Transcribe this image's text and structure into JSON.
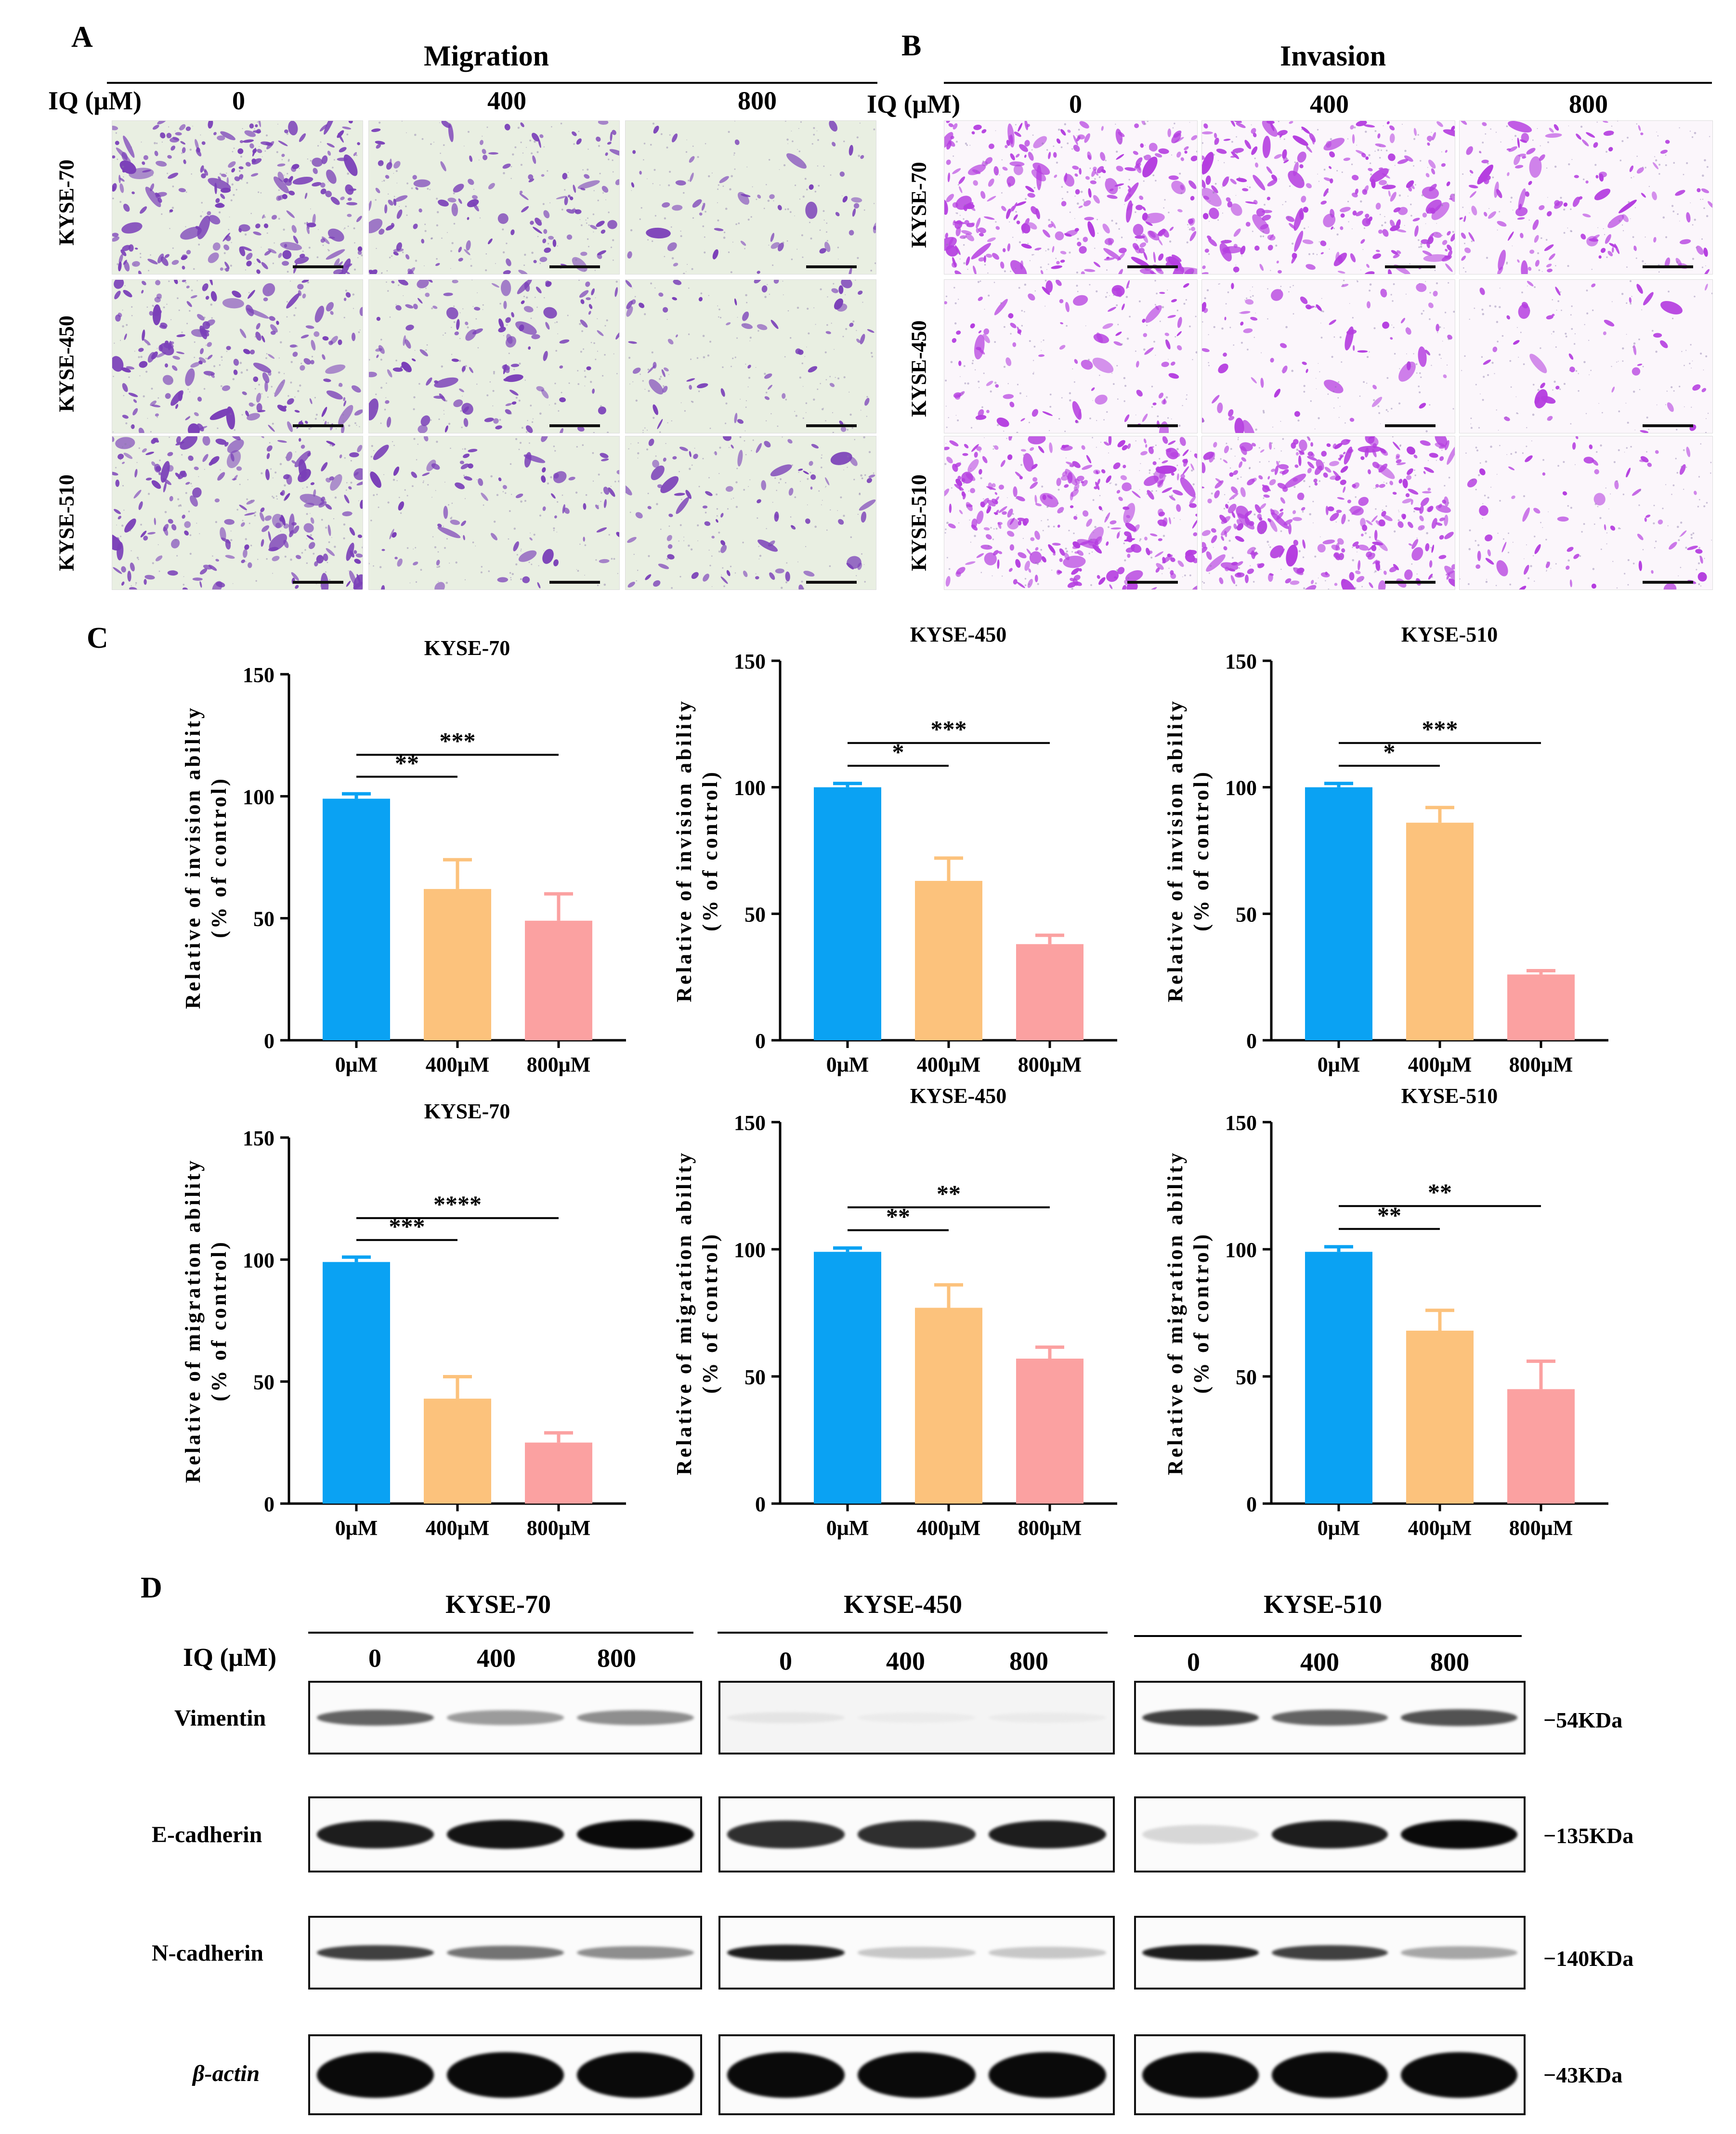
{
  "panelA": {
    "letter": "A",
    "title": "Migration",
    "iq_label": "IQ (μM)",
    "doses": [
      "0",
      "400",
      "800"
    ],
    "cell_lines": [
      "KYSE-70",
      "KYSE-450",
      "KYSE-510"
    ]
  },
  "panelB": {
    "letter": "B",
    "title": "Invasion",
    "iq_label": "IQ (μM)",
    "doses": [
      "0",
      "400",
      "800"
    ],
    "cell_lines": [
      "KYSE-70",
      "KYSE-450",
      "KYSE-510"
    ]
  },
  "panelC": {
    "letter": "C"
  },
  "chart_data": [
    {
      "type": "bar",
      "title": "KYSE-70",
      "ylabel": "Relative of invision ability\n(% of control)",
      "ylabel_line1": "Relative of invision ability",
      "ylabel_line2": "(% of control)",
      "categories": [
        "0μM",
        "400μM",
        "800μM"
      ],
      "values": [
        99,
        62,
        49
      ],
      "errors": [
        2,
        12,
        11
      ],
      "ylim": [
        0,
        150
      ],
      "yticks": [
        "0",
        "50",
        "100",
        "150"
      ],
      "sig": [
        {
          "from": 0,
          "to": 1,
          "label": "**"
        },
        {
          "from": 0,
          "to": 2,
          "label": "***"
        }
      ]
    },
    {
      "type": "bar",
      "title": "KYSE-450",
      "ylabel": "Relative of invision  ability\n(% of control)",
      "ylabel_line1": "Relative of invision  ability",
      "ylabel_line2": "(% of control)",
      "categories": [
        "0μM",
        "400μM",
        "800μM"
      ],
      "values": [
        100,
        63,
        38
      ],
      "errors": [
        1.5,
        9,
        3.5
      ],
      "ylim": [
        0,
        150
      ],
      "yticks": [
        "0",
        "50",
        "100",
        "150"
      ],
      "sig": [
        {
          "from": 0,
          "to": 1,
          "label": "*"
        },
        {
          "from": 0,
          "to": 2,
          "label": "***"
        }
      ]
    },
    {
      "type": "bar",
      "title": "KYSE-510",
      "ylabel": "Relative of invision ability\n(% of control)",
      "ylabel_line1": "Relative of invision ability",
      "ylabel_line2": "(% of control)",
      "categories": [
        "0μM",
        "400μM",
        "800μM"
      ],
      "values": [
        100,
        86,
        26
      ],
      "errors": [
        1.5,
        6,
        1.5
      ],
      "ylim": [
        0,
        150
      ],
      "yticks": [
        "0",
        "50",
        "100",
        "150"
      ],
      "sig": [
        {
          "from": 0,
          "to": 1,
          "label": "*"
        },
        {
          "from": 0,
          "to": 2,
          "label": "***"
        }
      ]
    },
    {
      "type": "bar",
      "title": "KYSE-70",
      "ylabel": "Relative of migration ability\n(% of control)",
      "ylabel_line1": "Relative of migration ability",
      "ylabel_line2": "(% of control)",
      "categories": [
        "0μM",
        "400μM",
        "800μM"
      ],
      "values": [
        99,
        43,
        25
      ],
      "errors": [
        2,
        9,
        4
      ],
      "ylim": [
        0,
        150
      ],
      "yticks": [
        "0",
        "50",
        "100",
        "150"
      ],
      "sig": [
        {
          "from": 0,
          "to": 1,
          "label": "***"
        },
        {
          "from": 0,
          "to": 2,
          "label": "****"
        }
      ]
    },
    {
      "type": "bar",
      "title": "KYSE-450",
      "ylabel": "Relative of migration ability\n(% of control)",
      "ylabel_line1": "Relative of migration ability",
      "ylabel_line2": "(% of control)",
      "categories": [
        "0μM",
        "400μM",
        "800μM"
      ],
      "values": [
        99,
        77,
        57
      ],
      "errors": [
        1.5,
        9,
        4.5
      ],
      "ylim": [
        0,
        150
      ],
      "yticks": [
        "0",
        "50",
        "100",
        "150"
      ],
      "sig": [
        {
          "from": 0,
          "to": 1,
          "label": "**"
        },
        {
          "from": 0,
          "to": 2,
          "label": "**"
        }
      ]
    },
    {
      "type": "bar",
      "title": "KYSE-510",
      "ylabel": "Relative of migration ability\n(% of control)",
      "ylabel_line1": "Relative of migration ability",
      "ylabel_line2": "(% of control)",
      "categories": [
        "0μM",
        "400μM",
        "800μM"
      ],
      "values": [
        99,
        68,
        45
      ],
      "errors": [
        2,
        8,
        11
      ],
      "ylim": [
        0,
        150
      ],
      "yticks": [
        "0",
        "50",
        "100",
        "150"
      ],
      "sig": [
        {
          "from": 0,
          "to": 1,
          "label": "**"
        },
        {
          "from": 0,
          "to": 2,
          "label": "**"
        }
      ]
    }
  ],
  "colors": {
    "dose0": "#0aa2f3",
    "dose400": "#fcc27c",
    "dose800": "#fba1a1"
  },
  "panelD": {
    "letter": "D",
    "iq_label": "IQ (μM)",
    "groups": [
      {
        "name": "KYSE-70",
        "doses": [
          "0",
          "400",
          "800"
        ]
      },
      {
        "name": "KYSE-450",
        "doses": [
          "0",
          "400",
          "800"
        ]
      },
      {
        "name": "KYSE-510",
        "doses": [
          "0",
          "400",
          "800"
        ]
      }
    ],
    "proteins": [
      {
        "name": "Vimentin",
        "kda": "−54KDa",
        "intensity": [
          [
            0.75,
            0.55,
            0.6
          ],
          [
            0.12,
            0.05,
            0.06
          ],
          [
            0.85,
            0.75,
            0.8
          ]
        ]
      },
      {
        "name": "E-cadherin",
        "kda": "−135KDa",
        "intensity": [
          [
            0.95,
            0.97,
            1.0
          ],
          [
            0.9,
            0.9,
            0.95
          ],
          [
            0.25,
            0.95,
            1.0
          ]
        ]
      },
      {
        "name": "N-cadherin",
        "kda": "−140KDa",
        "intensity": [
          [
            0.85,
            0.7,
            0.6
          ],
          [
            0.95,
            0.35,
            0.35
          ],
          [
            0.95,
            0.85,
            0.5
          ]
        ]
      },
      {
        "name": "β-actin",
        "kda": "−43KDa",
        "intensity": [
          [
            1.0,
            1.0,
            1.0
          ],
          [
            1.0,
            1.0,
            1.0
          ],
          [
            1.0,
            1.0,
            1.0
          ]
        ]
      }
    ]
  }
}
